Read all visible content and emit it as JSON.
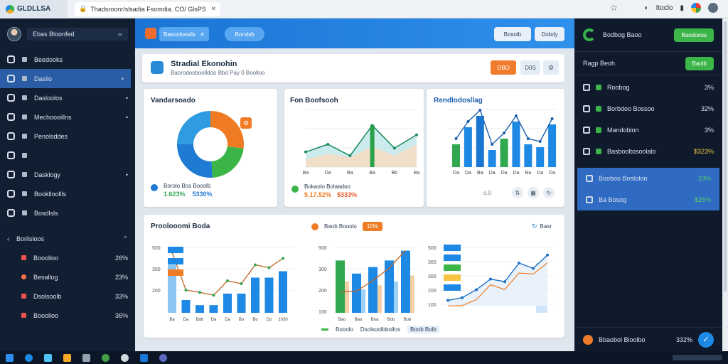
{
  "browser": {
    "brand": "GLDLLSA",
    "tab_title": "Thadsroonr/slsadia Fsomdia. CO/ GlsPS",
    "account_label": "Itoclo"
  },
  "sidebar": {
    "user_name": "Ebas Bloonfed",
    "items": [
      {
        "label": "Beedooks",
        "active": false,
        "chev": ""
      },
      {
        "label": "Dasilo",
        "active": true,
        "chev": "•"
      },
      {
        "label": "Dasloolos",
        "active": false,
        "chev": "•"
      },
      {
        "label": "Mechoooillns",
        "active": false,
        "chev": "•"
      },
      {
        "label": "Penolsddes",
        "active": false,
        "chev": ""
      },
      {
        "label": "",
        "active": false,
        "chev": ""
      },
      {
        "label": "Dasklogy",
        "active": false,
        "chev": "•"
      },
      {
        "label": "Booklloollls",
        "active": false,
        "chev": ""
      },
      {
        "label": "Bosdlsls",
        "active": false,
        "chev": ""
      }
    ],
    "section_label": "Borilsloos",
    "stats": [
      {
        "label": "Booolloo",
        "value": "26%"
      },
      {
        "label": "Besallog",
        "value": "23%"
      },
      {
        "label": "Dsolsoolb",
        "value": "33%"
      },
      {
        "label": "Booolloo",
        "value": "36%"
      }
    ]
  },
  "topbar": {
    "input_label": "Basoolooslls",
    "button_label": "Borolsb",
    "right_btn1": "Bosolb",
    "right_btn2": "Dobdy"
  },
  "header": {
    "title": "Stradial Ekonohin",
    "subtitle": "Baorodosboolldoo Bbd Pay 0 Boolloo",
    "btn1": "OBO",
    "btn2": "D0S",
    "btn3": "⚙"
  },
  "cards": {
    "donut": {
      "title": "Vandarsoado",
      "legend_text": "Borolo Bos Booolb",
      "values": [
        "1.623%",
        "5330%"
      ],
      "badge": "⚙",
      "slices": [
        0.27,
        0.22,
        0.26,
        0.25
      ],
      "slice_colors": [
        "#ef7c25",
        "#3cb548",
        "#1e7ad3",
        "#2f9be0"
      ]
    },
    "area": {
      "title": "Fon Boofsooh",
      "legend_text": "Bokaolo Bolaadoo",
      "values": [
        "5.17.52%",
        "5333%"
      ]
    },
    "bars1": {
      "title": "Rendlodosllag",
      "footer_label": "o.0"
    },
    "bottom_left": {
      "title": "Proolooomi Boda"
    },
    "bottom_mid": {
      "chip_text": "Baob Booolo",
      "chip_value": "10%",
      "legend1": "Booolo",
      "legend2": "Dsolsoolbbollos",
      "legend3": "Boob Bolb"
    },
    "bottom_right": {
      "link": "Basr"
    }
  },
  "chart_data": [
    {
      "type": "area",
      "x": [
        "Ba",
        "Da",
        "Ba",
        "Ba",
        "Bb",
        "Ba"
      ],
      "series": [
        {
          "values": [
            40,
            60,
            30,
            110,
            50,
            85
          ]
        },
        {
          "values": [
            20,
            35,
            25,
            55,
            30,
            60
          ]
        }
      ],
      "ylim": [
        0,
        150
      ]
    },
    {
      "type": "bar",
      "categories": [
        "Da",
        "Da",
        "Ba",
        "Da",
        "Da",
        "Da",
        "Ba",
        "Da",
        "Da"
      ],
      "values": [
        40,
        70,
        90,
        30,
        50,
        80,
        40,
        35,
        75
      ]
    },
    {
      "type": "bar",
      "categories": [
        "Ba",
        "Da",
        "Bob",
        "Da",
        "Da",
        "Bo",
        "Bo",
        "Do",
        "1030"
      ],
      "values": [
        75,
        20,
        12,
        12,
        30,
        30,
        55,
        55,
        65
      ],
      "ylim": [
        0,
        550
      ]
    },
    {
      "type": "bar",
      "categories": [
        "Bao",
        "Bao",
        "Boa",
        "Bob",
        "Bob"
      ],
      "values": [
        80,
        60,
        70,
        80,
        95
      ],
      "ylim": [
        0,
        550
      ]
    },
    {
      "type": "line",
      "x": [
        "Ba",
        "Ba",
        "Ba",
        "Ba",
        "Ba",
        "Ba",
        "Ba",
        "Ba"
      ],
      "values": [
        10,
        15,
        30,
        50,
        45,
        80,
        70,
        95
      ],
      "ylim": [
        0,
        550
      ]
    }
  ],
  "right_panel": {
    "title": "Bodbog Baoo",
    "btn_main": "Baodooss",
    "sub_title": "Ragp Beoh",
    "sub_btn": "Baolb",
    "rows": [
      {
        "label": "Roobog",
        "value": "3%",
        "tone": ""
      },
      {
        "label": "Borbdoo Bossoo",
        "value": "32%",
        "tone": ""
      },
      {
        "label": "Mandoblon",
        "value": "3%",
        "tone": ""
      },
      {
        "label": "Basbooltosoolalo",
        "value": "$323%",
        "tone": "y"
      },
      {
        "label": "Booboo Bostolon",
        "value": "23%",
        "tone": "g"
      },
      {
        "label": "Ba Bosog",
        "value": "$25%",
        "tone": "g"
      }
    ],
    "footer_label": "Bbaobol Bloolbo",
    "footer_value": "332%"
  }
}
